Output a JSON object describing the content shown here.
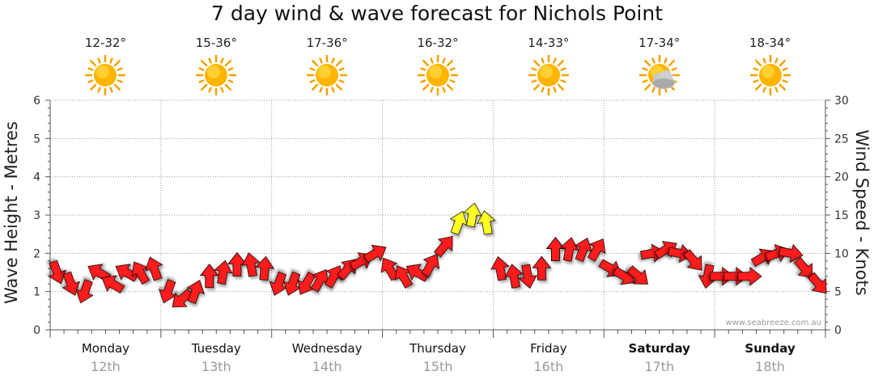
{
  "title": "7 day wind & wave forecast for Nichols Point",
  "watermark": "www.seabreeze.com.au",
  "days": [
    {
      "name": "Monday",
      "date": "12th",
      "temp": "12-32°",
      "icon": "sunny-icon",
      "bold": false
    },
    {
      "name": "Tuesday",
      "date": "13th",
      "temp": "15-36°",
      "icon": "sunny-icon",
      "bold": false
    },
    {
      "name": "Wednesday",
      "date": "14th",
      "temp": "17-36°",
      "icon": "sunny-icon",
      "bold": false
    },
    {
      "name": "Thursday",
      "date": "15th",
      "temp": "16-32°",
      "icon": "sunny-icon",
      "bold": false
    },
    {
      "name": "Friday",
      "date": "16th",
      "temp": "14-33°",
      "icon": "sunny-icon",
      "bold": false
    },
    {
      "name": "Saturday",
      "date": "17th",
      "temp": "17-34°",
      "icon": "partly-cloudy-icon",
      "bold": true
    },
    {
      "name": "Sunday",
      "date": "18th",
      "temp": "18-34°",
      "icon": "sunny-icon",
      "bold": true
    }
  ],
  "colors": {
    "arrow_normal": "#ff1a1a",
    "arrow_strong": "#ffff22",
    "grid": "#9a9a9a"
  },
  "chart_data": {
    "type": "line",
    "ylabel_left": "Wave Height - Metres",
    "ylabel_right": "Wind Speed - Knots",
    "ylim_left": [
      0,
      6
    ],
    "ylim_right": [
      0,
      30
    ],
    "yticks_left": [
      "0",
      "1",
      "2",
      "3",
      "4",
      "5",
      "6"
    ],
    "yticks_right": [
      "0",
      "5",
      "10",
      "15",
      "20",
      "25",
      "30"
    ],
    "grid": true,
    "series": [
      {
        "units": "knots (arrows show wind direction)",
        "samples_per_day": 8,
        "values": [
          7.5,
          6,
          5,
          7.5,
          6,
          7.5,
          7.5,
          8,
          5,
          4,
          5,
          7,
          7.5,
          8.5,
          8.5,
          8,
          6,
          6,
          6,
          6.5,
          7,
          8,
          9,
          10,
          8,
          7,
          7.5,
          8.5,
          11,
          14,
          15,
          14,
          8,
          7,
          7,
          8,
          10.5,
          10.5,
          10.5,
          10.5,
          8,
          7,
          7,
          10,
          10.5,
          10,
          9,
          7,
          7,
          7,
          7,
          9.5,
          10,
          10,
          8,
          6
        ],
        "direction_deg": [
          160,
          160,
          200,
          300,
          300,
          300,
          330,
          340,
          200,
          230,
          20,
          0,
          10,
          0,
          350,
          5,
          200,
          200,
          210,
          30,
          30,
          40,
          60,
          60,
          330,
          330,
          300,
          30,
          40,
          20,
          10,
          350,
          350,
          350,
          170,
          0,
          0,
          10,
          20,
          30,
          120,
          120,
          130,
          80,
          60,
          100,
          140,
          190,
          90,
          90,
          90,
          60,
          70,
          100,
          140,
          140
        ]
      }
    ]
  }
}
